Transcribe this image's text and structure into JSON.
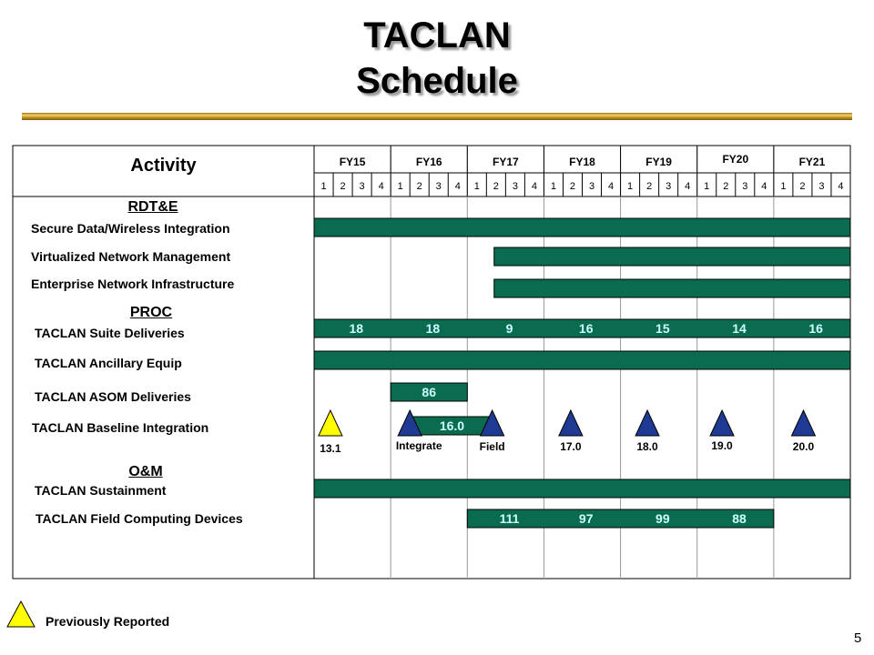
{
  "title": {
    "line1": "TACLAN",
    "line2": "Schedule"
  },
  "header": {
    "activity": "Activity",
    "fiscal_years": [
      "FY15",
      "FY16",
      "FY17",
      "FY18",
      "FY19",
      "FY20",
      "FY21"
    ],
    "quarters": [
      "1",
      "2",
      "3",
      "4"
    ]
  },
  "sections": {
    "rdte": "RDT&E",
    "proc": "PROC",
    "om": "O&M"
  },
  "activities": [
    "Secure Data/Wireless Integration",
    "Virtualized Network Management",
    "Enterprise Network Infrastructure",
    "TACLAN  Suite Deliveries",
    "TACLAN  Ancillary Equip",
    "TACLAN  ASOM Deliveries",
    "TACLAN  Baseline Integration",
    "TACLAN  Sustainment",
    "TACLAN  Field Computing Devices"
  ],
  "bars": [
    {
      "row": 0,
      "start_q": 0,
      "end_q": 28,
      "labels": []
    },
    {
      "row": 1,
      "start_q": 9.4,
      "end_q": 28,
      "labels": []
    },
    {
      "row": 2,
      "start_q": 9.4,
      "end_q": 28,
      "labels": []
    },
    {
      "row": 3,
      "start_q": 0,
      "end_q": 28,
      "labels": [
        {
          "text": "18",
          "q": 2.2
        },
        {
          "text": "18",
          "q": 6.2
        },
        {
          "text": "9",
          "q": 10.2
        },
        {
          "text": "16",
          "q": 14.2
        },
        {
          "text": "15",
          "q": 18.2
        },
        {
          "text": "14",
          "q": 22.2
        },
        {
          "text": "16",
          "q": 26.2
        }
      ]
    },
    {
      "row": 4,
      "start_q": 0,
      "end_q": 28,
      "labels": []
    },
    {
      "row": 5,
      "start_q": 4,
      "end_q": 8,
      "labels": [
        {
          "text": "86",
          "q": 6
        }
      ]
    },
    {
      "row": 6,
      "start_q": 5,
      "end_q": 9.3,
      "labels": [
        {
          "text": "16.0",
          "q": 7.2
        }
      ]
    },
    {
      "row": 7,
      "start_q": 0,
      "end_q": 28,
      "labels": []
    },
    {
      "row": 8,
      "start_q": 8,
      "end_q": 24,
      "labels": [
        {
          "text": "111",
          "q": 10.2
        },
        {
          "text": "97",
          "q": 14.2
        },
        {
          "text": "99",
          "q": 18.2
        },
        {
          "text": "88",
          "q": 22.2
        }
      ]
    }
  ],
  "milestones": [
    {
      "q": 0.85,
      "color": "#ffff00",
      "label": "13.1"
    },
    {
      "q": 5.0,
      "color": "#1f3a93",
      "label": "Integrate"
    },
    {
      "q": 9.3,
      "color": "#1f3a93",
      "label": "Field"
    },
    {
      "q": 13.4,
      "color": "#1f3a93",
      "label": "17.0"
    },
    {
      "q": 17.4,
      "color": "#1f3a93",
      "label": "18.0"
    },
    {
      "q": 21.3,
      "color": "#1f3a93",
      "label": "19.0"
    },
    {
      "q": 25.55,
      "color": "#1f3a93",
      "label": "20.0"
    }
  ],
  "legend": {
    "text": "Previously Reported",
    "color": "#ffff00"
  },
  "page_number": "5",
  "colors": {
    "bar": "#0b6b4e",
    "bar_label": "#ccffff",
    "border": "#000000",
    "grid": "#999999"
  }
}
